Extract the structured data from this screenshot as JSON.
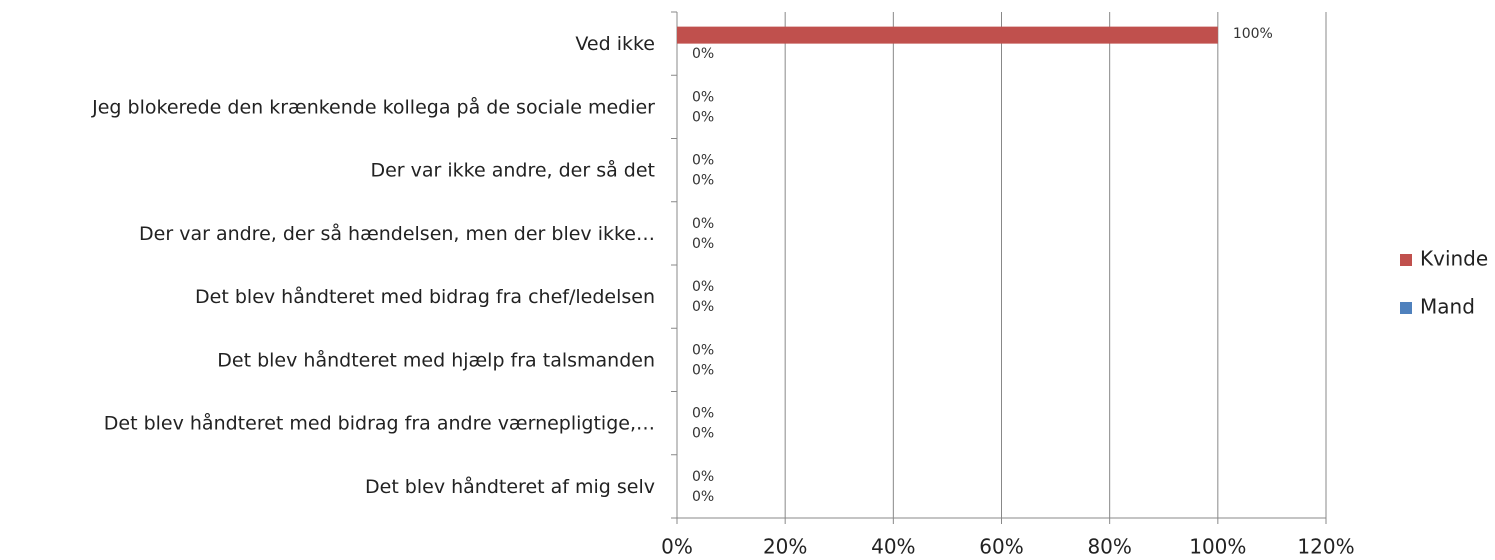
{
  "chart_data": {
    "type": "hbar",
    "categories": [
      "Ved ikke",
      "Jeg blokerede den krænkende kollega på de sociale medier",
      "Der var ikke andre, der så det",
      "Der var andre, der så hændelsen, men der blev ikke…",
      "Det blev håndteret med bidrag fra chef/ledelsen",
      "Det blev håndteret med hjælp fra talsmanden",
      "Det blev håndteret med bidrag fra andre værnepligtige,…",
      "Det blev håndteret af mig selv"
    ],
    "series": [
      {
        "name": "Kvinde",
        "color": "#c0504d",
        "values": [
          100,
          0,
          0,
          0,
          0,
          0,
          0,
          0
        ],
        "value_labels": [
          "100%",
          "0%",
          "0%",
          "0%",
          "0%",
          "0%",
          "0%",
          "0%"
        ]
      },
      {
        "name": "Mand",
        "color": "#4f81bd",
        "values": [
          0,
          0,
          0,
          0,
          0,
          0,
          0,
          0
        ],
        "value_labels": [
          "0%",
          "0%",
          "0%",
          "0%",
          "0%",
          "0%",
          "0%",
          "0%"
        ]
      }
    ],
    "xlim": [
      0,
      120
    ],
    "xticks": [
      {
        "value": 0,
        "label": "0%"
      },
      {
        "value": 20,
        "label": "20%"
      },
      {
        "value": 40,
        "label": "40%"
      },
      {
        "value": 60,
        "label": "60%"
      },
      {
        "value": 80,
        "label": "80%"
      },
      {
        "value": 100,
        "label": "100%"
      },
      {
        "value": 120,
        "label": "120%"
      }
    ],
    "grid": true,
    "legend": "right"
  }
}
